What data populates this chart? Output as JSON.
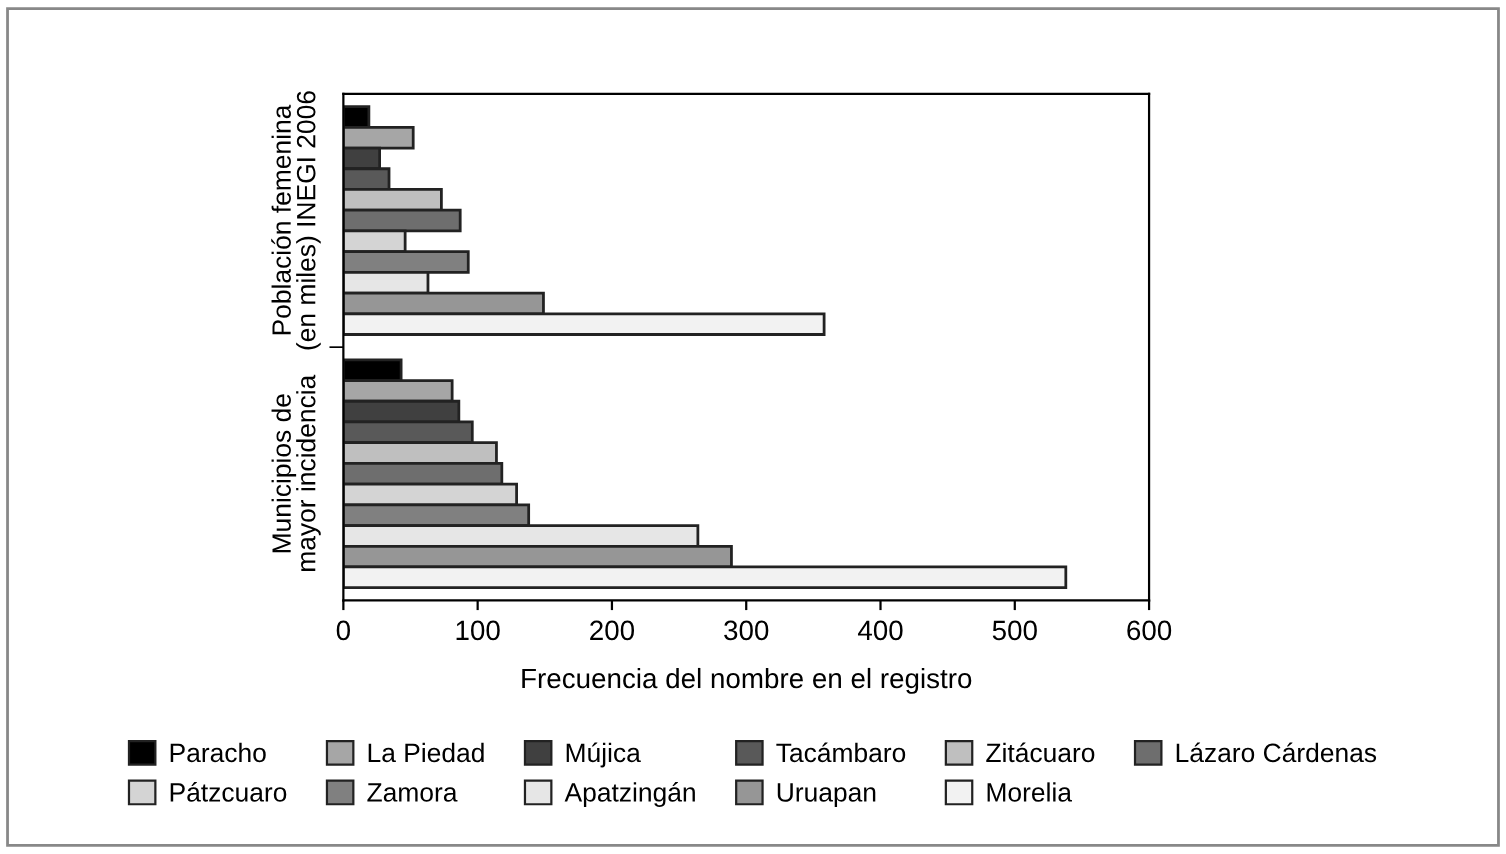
{
  "chart_data": {
    "type": "bar",
    "orientation": "horizontal",
    "xlabel": "Frecuencia del nombre en el registro",
    "categories": [
      "Población femenina\n(en miles) INEGI 2006",
      "Municipios de\nmayor incidencia"
    ],
    "series": [
      {
        "name": "Paracho",
        "color": "#000000",
        "values": [
          19,
          43
        ]
      },
      {
        "name": "La Piedad",
        "color": "#a6a6a6",
        "values": [
          52,
          81
        ]
      },
      {
        "name": "Mújica",
        "color": "#404040",
        "values": [
          27,
          86
        ]
      },
      {
        "name": "Tacámbaro",
        "color": "#595959",
        "values": [
          34,
          96
        ]
      },
      {
        "name": "Zitácuaro",
        "color": "#bfbfbf",
        "values": [
          73,
          114
        ]
      },
      {
        "name": "Lázaro Cárdenas",
        "color": "#6e6e6e",
        "values": [
          87,
          118
        ]
      },
      {
        "name": "Pátzcuaro",
        "color": "#d4d4d4",
        "values": [
          46,
          129
        ]
      },
      {
        "name": "Zamora",
        "color": "#808080",
        "values": [
          93,
          138
        ]
      },
      {
        "name": "Apatzingán",
        "color": "#e6e6e6",
        "values": [
          63,
          264
        ]
      },
      {
        "name": "Uruapan",
        "color": "#969696",
        "values": [
          149,
          289
        ]
      },
      {
        "name": "Morelia",
        "color": "#f2f2f2",
        "values": [
          358,
          538
        ]
      }
    ],
    "xlim": [
      0,
      600
    ],
    "xticks": [
      0,
      100,
      200,
      300,
      400,
      500,
      600
    ],
    "grid": false,
    "legend": "bottom"
  }
}
